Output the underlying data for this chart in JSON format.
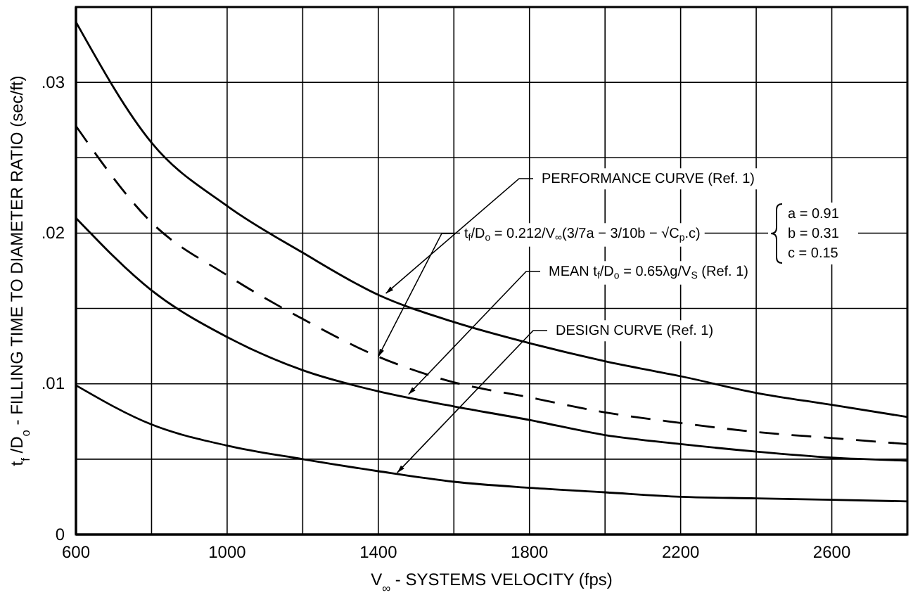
{
  "chart_data": {
    "type": "line",
    "xlabel": "V$_{∞}$ - SYSTEMS VELOCITY (fps)",
    "ylabel": "t$_{f}$ /D$_{o}$ - FILLING TIME TO DIAMETER RATIO (sec/ft)",
    "x": [
      600,
      800,
      1000,
      1200,
      1400,
      1600,
      1800,
      2000,
      2200,
      2400,
      2600,
      2800
    ],
    "series": [
      {
        "color": "#000000",
        "line_style": "solid",
        "values": [
          0.034,
          0.026,
          0.0218,
          0.0187,
          0.0159,
          0.0141,
          0.0127,
          0.0115,
          0.0105,
          0.0094,
          0.0086,
          0.0078
        ]
      },
      {
        "color": "#000000",
        "line_style": "dashed",
        "values": [
          0.0271,
          0.0207,
          0.0172,
          0.0143,
          0.0118,
          0.0101,
          0.0091,
          0.0081,
          0.0074,
          0.0068,
          0.0064,
          0.006
        ]
      },
      {
        "color": "#000000",
        "line_style": "solid",
        "values": [
          0.021,
          0.0162,
          0.0131,
          0.0109,
          0.0095,
          0.0085,
          0.0076,
          0.0066,
          0.006,
          0.0055,
          0.0051,
          0.0049
        ]
      },
      {
        "color": "#000000",
        "line_style": "solid",
        "values": [
          0.0099,
          0.0073,
          0.0059,
          0.005,
          0.0042,
          0.0035,
          0.0031,
          0.0028,
          0.0025,
          0.0024,
          0.0023,
          0.0022
        ]
      }
    ],
    "xlim": [
      600,
      2800
    ],
    "xticks": [
      600,
      {
        "value": 800,
        "label": null
      },
      1000,
      {
        "value": 1200,
        "label": null
      },
      1400,
      {
        "value": 1600,
        "label": null
      },
      1800,
      {
        "value": 2000,
        "label": null
      },
      2200,
      {
        "value": 2400,
        "label": null
      },
      2600,
      {
        "value": 2800,
        "label": null
      }
    ],
    "ylim": [
      0,
      0.035
    ],
    "yticks": [
      0,
      {
        "value": 0.005,
        "label": null
      },
      {
        "value": 0.01,
        "label": ".01"
      },
      {
        "value": 0.015,
        "label": null
      },
      {
        "value": 0.02,
        "label": ".02"
      },
      {
        "value": 0.025,
        "label": null
      },
      {
        "value": 0.03,
        "label": ".03"
      }
    ],
    "grid": true,
    "annotations": [
      {
        "text": "PERFORMANCE CURVE (Ref. 1)",
        "x": 1420,
        "y": 0.016
      },
      "t$_{f}$/D$_{o}$ = 0.212/V$_{∞}$(3/7a − 3/10b − √C$_{p}$.c)",
      {
        "text": "MEAN t$_{f}$/D$_{o}$ = 0.65λg/V$_{S}$ (Ref. 1)",
        "x": 1480,
        "y": 0.0093
      },
      {
        "text": "DESIGN CURVE (Ref. 1)",
        "x": 1450,
        "y": 0.0041
      },
      "a = 0.91",
      "b = 0.31",
      "c = 0.15"
    ]
  }
}
